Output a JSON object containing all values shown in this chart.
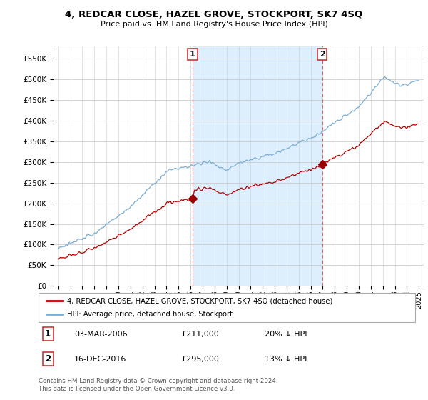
{
  "title": "4, REDCAR CLOSE, HAZEL GROVE, STOCKPORT, SK7 4SQ",
  "subtitle": "Price paid vs. HM Land Registry's House Price Index (HPI)",
  "legend_property": "4, REDCAR CLOSE, HAZEL GROVE, STOCKPORT, SK7 4SQ (detached house)",
  "legend_hpi": "HPI: Average price, detached house, Stockport",
  "annotation1_label": "1",
  "annotation1_date": "03-MAR-2006",
  "annotation1_price": "£211,000",
  "annotation1_hpi": "20% ↓ HPI",
  "annotation2_label": "2",
  "annotation2_date": "16-DEC-2016",
  "annotation2_price": "£295,000",
  "annotation2_hpi": "13% ↓ HPI",
  "footer": "Contains HM Land Registry data © Crown copyright and database right 2024.\nThis data is licensed under the Open Government Licence v3.0.",
  "property_color": "#bb0000",
  "hpi_color": "#7aadd4",
  "shade_color": "#ddeeff",
  "dashed_line_color": "#dd4444",
  "marker_color": "#990000",
  "yticks": [
    0,
    50000,
    100000,
    150000,
    200000,
    250000,
    300000,
    350000,
    400000,
    450000,
    500000,
    550000
  ],
  "year_start": 1995,
  "year_end": 2025,
  "sale1_year_val": 2006.17,
  "sale1_price": 211000,
  "sale2_year_val": 2016.96,
  "sale2_price": 295000
}
